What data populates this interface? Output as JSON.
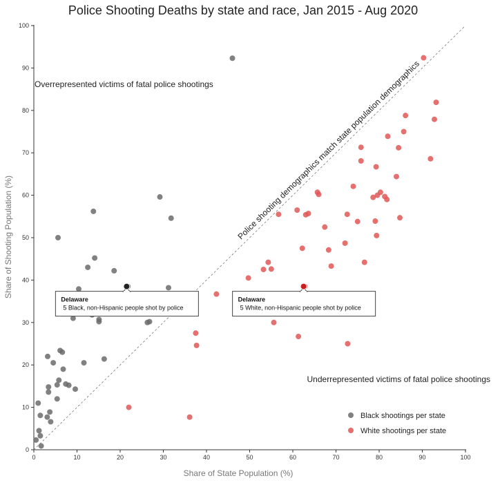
{
  "chart_data": {
    "type": "scatter",
    "title": "Police Shooting Deaths by state and race, Jan 2015 - Aug 2020",
    "xlabel": "Share of State Population (%)",
    "ylabel": "Share of Shooting Population (%)",
    "xlim": [
      0,
      100
    ],
    "ylim": [
      0,
      100
    ],
    "x_ticks": [
      "0",
      "10",
      "20",
      "30",
      "40",
      "50",
      "60",
      "70",
      "80",
      "90",
      "100"
    ],
    "y_ticks": [
      "0",
      "10",
      "20",
      "30",
      "40",
      "50",
      "60",
      "70",
      "80",
      "90",
      "100"
    ],
    "grid": false,
    "legend_position": "bottom-right",
    "diagonal_label": "Police shooting demographics match state population demographics",
    "annotations": {
      "over": "Overrepresented victims of fatal police shootings",
      "under": "Underrepresented victims of fatal police shootings"
    },
    "series": [
      {
        "name": "Black shootings per state",
        "color": "#6b6b6b",
        "points": [
          [
            1,
            11
          ],
          [
            0.5,
            2.3
          ],
          [
            1.2,
            4.5
          ],
          [
            1.5,
            3.3
          ],
          [
            1.5,
            8.1
          ],
          [
            1.7,
            0.9
          ],
          [
            3.1,
            7.7
          ],
          [
            3.2,
            22
          ],
          [
            3.4,
            14.8
          ],
          [
            3.4,
            13.6
          ],
          [
            3.7,
            8.9
          ],
          [
            3.9,
            6.6
          ],
          [
            4.5,
            20.5
          ],
          [
            5.4,
            15.3
          ],
          [
            5.4,
            12
          ],
          [
            5.6,
            50
          ],
          [
            5.8,
            16.4
          ],
          [
            6.1,
            23.4
          ],
          [
            6.6,
            23
          ],
          [
            6.8,
            19
          ],
          [
            7.4,
            15.5
          ],
          [
            8.1,
            15.2
          ],
          [
            9.1,
            31
          ],
          [
            9.6,
            14.3
          ],
          [
            10.4,
            37.9
          ],
          [
            11.6,
            20.5
          ],
          [
            12.5,
            43
          ],
          [
            13.5,
            31.8
          ],
          [
            13.8,
            56.2
          ],
          [
            14.1,
            45.2
          ],
          [
            15.1,
            30.7
          ],
          [
            15.1,
            30.2
          ],
          [
            16.3,
            21.4
          ],
          [
            18.6,
            42.2
          ],
          [
            21.3,
            32.8
          ],
          [
            21.8,
            38.5
          ],
          [
            26.3,
            30
          ],
          [
            26.8,
            30.2
          ],
          [
            29.2,
            59.6
          ],
          [
            31.2,
            38.2
          ],
          [
            31.8,
            54.6
          ],
          [
            46,
            92.3
          ]
        ]
      },
      {
        "name": "White shootings per state",
        "color": "#e05757",
        "points": [
          [
            22,
            10
          ],
          [
            36.1,
            7.7
          ],
          [
            37.5,
            27.5
          ],
          [
            37.7,
            24.6
          ],
          [
            42.3,
            36.7
          ],
          [
            49.7,
            40.5
          ],
          [
            51.5,
            33
          ],
          [
            53.2,
            42.5
          ],
          [
            54.3,
            44.2
          ],
          [
            55,
            42.6
          ],
          [
            55.6,
            30
          ],
          [
            55.7,
            35.5
          ],
          [
            56.7,
            55.5
          ],
          [
            58.4,
            34.8
          ],
          [
            61,
            56.5
          ],
          [
            61.3,
            26.7
          ],
          [
            62.2,
            47.5
          ],
          [
            62.8,
            38.5
          ],
          [
            63,
            55.4
          ],
          [
            63.6,
            55.7
          ],
          [
            65.7,
            60.7
          ],
          [
            66,
            60.2
          ],
          [
            67.4,
            52.5
          ],
          [
            68.3,
            47.1
          ],
          [
            68.9,
            43.3
          ],
          [
            72.1,
            48.7
          ],
          [
            72.6,
            55.5
          ],
          [
            72.7,
            25
          ],
          [
            74,
            62.1
          ],
          [
            75,
            53.8
          ],
          [
            75.8,
            71.3
          ],
          [
            75.8,
            68.1
          ],
          [
            76.6,
            44.2
          ],
          [
            78.6,
            59.5
          ],
          [
            79.1,
            53.9
          ],
          [
            79.3,
            66.7
          ],
          [
            79.4,
            50.5
          ],
          [
            79.6,
            60
          ],
          [
            80.3,
            60.7
          ],
          [
            81.3,
            59.7
          ],
          [
            81.8,
            59
          ],
          [
            82,
            73.9
          ],
          [
            84,
            64.4
          ],
          [
            84.5,
            71.2
          ],
          [
            84.8,
            54.7
          ],
          [
            85.7,
            75
          ],
          [
            86.1,
            78.8
          ],
          [
            90.3,
            92.4
          ],
          [
            91.9,
            68.6
          ],
          [
            92.8,
            77.9
          ],
          [
            93.2,
            81.9
          ]
        ]
      }
    ],
    "highlights": [
      {
        "series": "Black shootings per state",
        "state": "Delaware",
        "text": "5 Black, non-Hispanic people shot by police",
        "x": 21.5,
        "y": 38.5,
        "color": "#222222"
      },
      {
        "series": "White shootings per state",
        "state": "Delaware",
        "text": "5 White, non-Hispanic people shot by police",
        "x": 62.5,
        "y": 38.5,
        "color": "#c62020"
      }
    ]
  }
}
